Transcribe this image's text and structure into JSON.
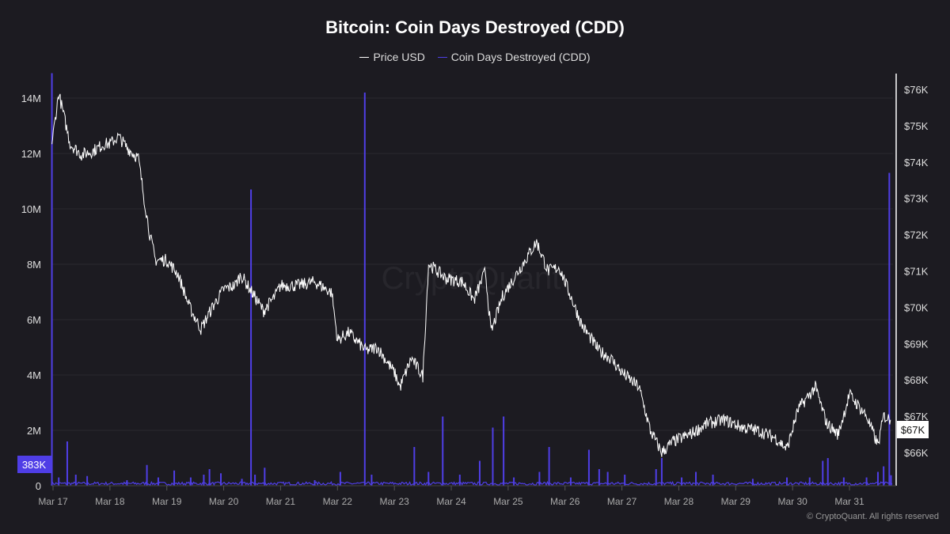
{
  "title": "Bitcoin: Coin Days Destroyed (CDD)",
  "footer": "© CryptoQuant. All rights reserved",
  "watermark": "CryptoQuant",
  "colors": {
    "price": "#ffffff",
    "cdd": "#4f3ee6",
    "background": "#1c1b21"
  },
  "chart_data": {
    "type": "line",
    "title": "Bitcoin: Coin Days Destroyed (CDD)",
    "legend": [
      "Price USD",
      "Coin Days Destroyed (CDD)"
    ],
    "legend_position": "top-center",
    "x_ticks": [
      "Mar 17",
      "Mar 18",
      "Mar 19",
      "Mar 20",
      "Mar 21",
      "Mar 22",
      "Mar 23",
      "Mar 24",
      "Mar 25",
      "Mar 26",
      "Mar 27",
      "Mar 28",
      "Mar 29",
      "Mar 30",
      "Mar 31"
    ],
    "x_range_day_of_march": [
      16.97,
      31.76
    ],
    "left_axis": {
      "label": "CDD",
      "ticks": [
        "0",
        "2M",
        "4M",
        "6M",
        "8M",
        "10M",
        "12M",
        "14M"
      ],
      "ylim": [
        0,
        15000000
      ]
    },
    "right_axis": {
      "label": "Price USD",
      "ticks": [
        "$66K",
        "$67K",
        "$68K",
        "$69K",
        "$70K",
        "$71K",
        "$72K",
        "$73K",
        "$74K",
        "$75K",
        "$76K"
      ]
    },
    "current_labels": {
      "cdd": "383K",
      "price": "$67K"
    },
    "series": [
      {
        "name": "Price USD",
        "unit": "USD thousands",
        "points": [
          [
            16.98,
            74.5
          ],
          [
            17.1,
            75.9
          ],
          [
            17.2,
            75.2
          ],
          [
            17.3,
            74.5
          ],
          [
            17.5,
            74.2
          ],
          [
            17.7,
            74.3
          ],
          [
            17.9,
            74.5
          ],
          [
            18.0,
            74.5
          ],
          [
            18.15,
            74.7
          ],
          [
            18.3,
            74.4
          ],
          [
            18.5,
            74.1
          ],
          [
            18.6,
            73.0
          ],
          [
            18.7,
            72.0
          ],
          [
            18.8,
            71.3
          ],
          [
            19.0,
            71.3
          ],
          [
            19.2,
            70.9
          ],
          [
            19.4,
            70.0
          ],
          [
            19.6,
            69.4
          ],
          [
            19.8,
            70.0
          ],
          [
            20.0,
            70.5
          ],
          [
            20.2,
            70.6
          ],
          [
            20.3,
            70.9
          ],
          [
            20.5,
            70.4
          ],
          [
            20.7,
            69.9
          ],
          [
            20.9,
            70.3
          ],
          [
            21.0,
            70.6
          ],
          [
            21.3,
            70.6
          ],
          [
            21.6,
            70.7
          ],
          [
            21.9,
            70.4
          ],
          [
            22.0,
            69.1
          ],
          [
            22.2,
            69.3
          ],
          [
            22.5,
            68.8
          ],
          [
            22.7,
            68.9
          ],
          [
            23.0,
            68.2
          ],
          [
            23.1,
            67.8
          ],
          [
            23.3,
            68.6
          ],
          [
            23.5,
            68.1
          ],
          [
            23.6,
            71.2
          ],
          [
            23.9,
            70.8
          ],
          [
            24.2,
            70.7
          ],
          [
            24.4,
            70.2
          ],
          [
            24.6,
            71.0
          ],
          [
            24.7,
            69.3
          ],
          [
            24.9,
            70.3
          ],
          [
            25.1,
            70.8
          ],
          [
            25.3,
            71.3
          ],
          [
            25.5,
            71.8
          ],
          [
            25.7,
            71.0
          ],
          [
            25.9,
            71.1
          ],
          [
            26.1,
            70.3
          ],
          [
            26.3,
            69.5
          ],
          [
            26.6,
            68.8
          ],
          [
            26.8,
            68.6
          ],
          [
            27.0,
            68.2
          ],
          [
            27.3,
            67.8
          ],
          [
            27.5,
            66.6
          ],
          [
            27.7,
            66.0
          ],
          [
            27.9,
            66.3
          ],
          [
            28.2,
            66.5
          ],
          [
            28.5,
            66.8
          ],
          [
            28.8,
            66.9
          ],
          [
            29.1,
            66.7
          ],
          [
            29.4,
            66.6
          ],
          [
            29.7,
            66.4
          ],
          [
            29.9,
            66.1
          ],
          [
            30.1,
            67.2
          ],
          [
            30.4,
            67.8
          ],
          [
            30.6,
            66.8
          ],
          [
            30.8,
            66.5
          ],
          [
            31.0,
            67.6
          ],
          [
            31.3,
            67.0
          ],
          [
            31.5,
            66.2
          ],
          [
            31.6,
            67.0
          ],
          [
            31.72,
            66.9
          ]
        ]
      },
      {
        "name": "Coin Days Destroyed (CDD)",
        "unit": "millions",
        "baseline": 0.08,
        "spikes": [
          [
            16.98,
            14.9
          ],
          [
            17.1,
            0.3
          ],
          [
            17.25,
            1.6
          ],
          [
            17.4,
            0.4
          ],
          [
            17.6,
            0.35
          ],
          [
            18.3,
            0.2
          ],
          [
            18.65,
            0.75
          ],
          [
            18.85,
            0.3
          ],
          [
            19.13,
            0.55
          ],
          [
            19.42,
            0.3
          ],
          [
            19.65,
            0.4
          ],
          [
            19.75,
            0.6
          ],
          [
            19.95,
            0.45
          ],
          [
            20.32,
            0.25
          ],
          [
            20.48,
            10.7
          ],
          [
            20.55,
            0.4
          ],
          [
            20.72,
            0.65
          ],
          [
            21.6,
            0.2
          ],
          [
            22.05,
            0.5
          ],
          [
            22.48,
            14.2
          ],
          [
            22.6,
            0.4
          ],
          [
            23.35,
            1.4
          ],
          [
            23.6,
            0.5
          ],
          [
            23.85,
            2.5
          ],
          [
            24.15,
            0.4
          ],
          [
            24.5,
            0.9
          ],
          [
            24.73,
            2.1
          ],
          [
            24.92,
            2.5
          ],
          [
            25.1,
            0.3
          ],
          [
            25.55,
            0.5
          ],
          [
            25.72,
            1.4
          ],
          [
            26.1,
            0.3
          ],
          [
            26.42,
            1.3
          ],
          [
            26.6,
            0.6
          ],
          [
            26.75,
            0.5
          ],
          [
            27.05,
            0.4
          ],
          [
            27.6,
            0.6
          ],
          [
            27.7,
            1.0
          ],
          [
            28.05,
            0.3
          ],
          [
            28.3,
            0.5
          ],
          [
            28.6,
            0.4
          ],
          [
            29.3,
            0.25
          ],
          [
            29.9,
            0.3
          ],
          [
            30.3,
            0.3
          ],
          [
            30.53,
            0.9
          ],
          [
            30.62,
            1.0
          ],
          [
            30.9,
            0.3
          ],
          [
            31.3,
            0.3
          ],
          [
            31.5,
            0.5
          ],
          [
            31.6,
            0.7
          ],
          [
            31.7,
            11.3
          ],
          [
            31.73,
            0.38
          ]
        ]
      }
    ]
  }
}
